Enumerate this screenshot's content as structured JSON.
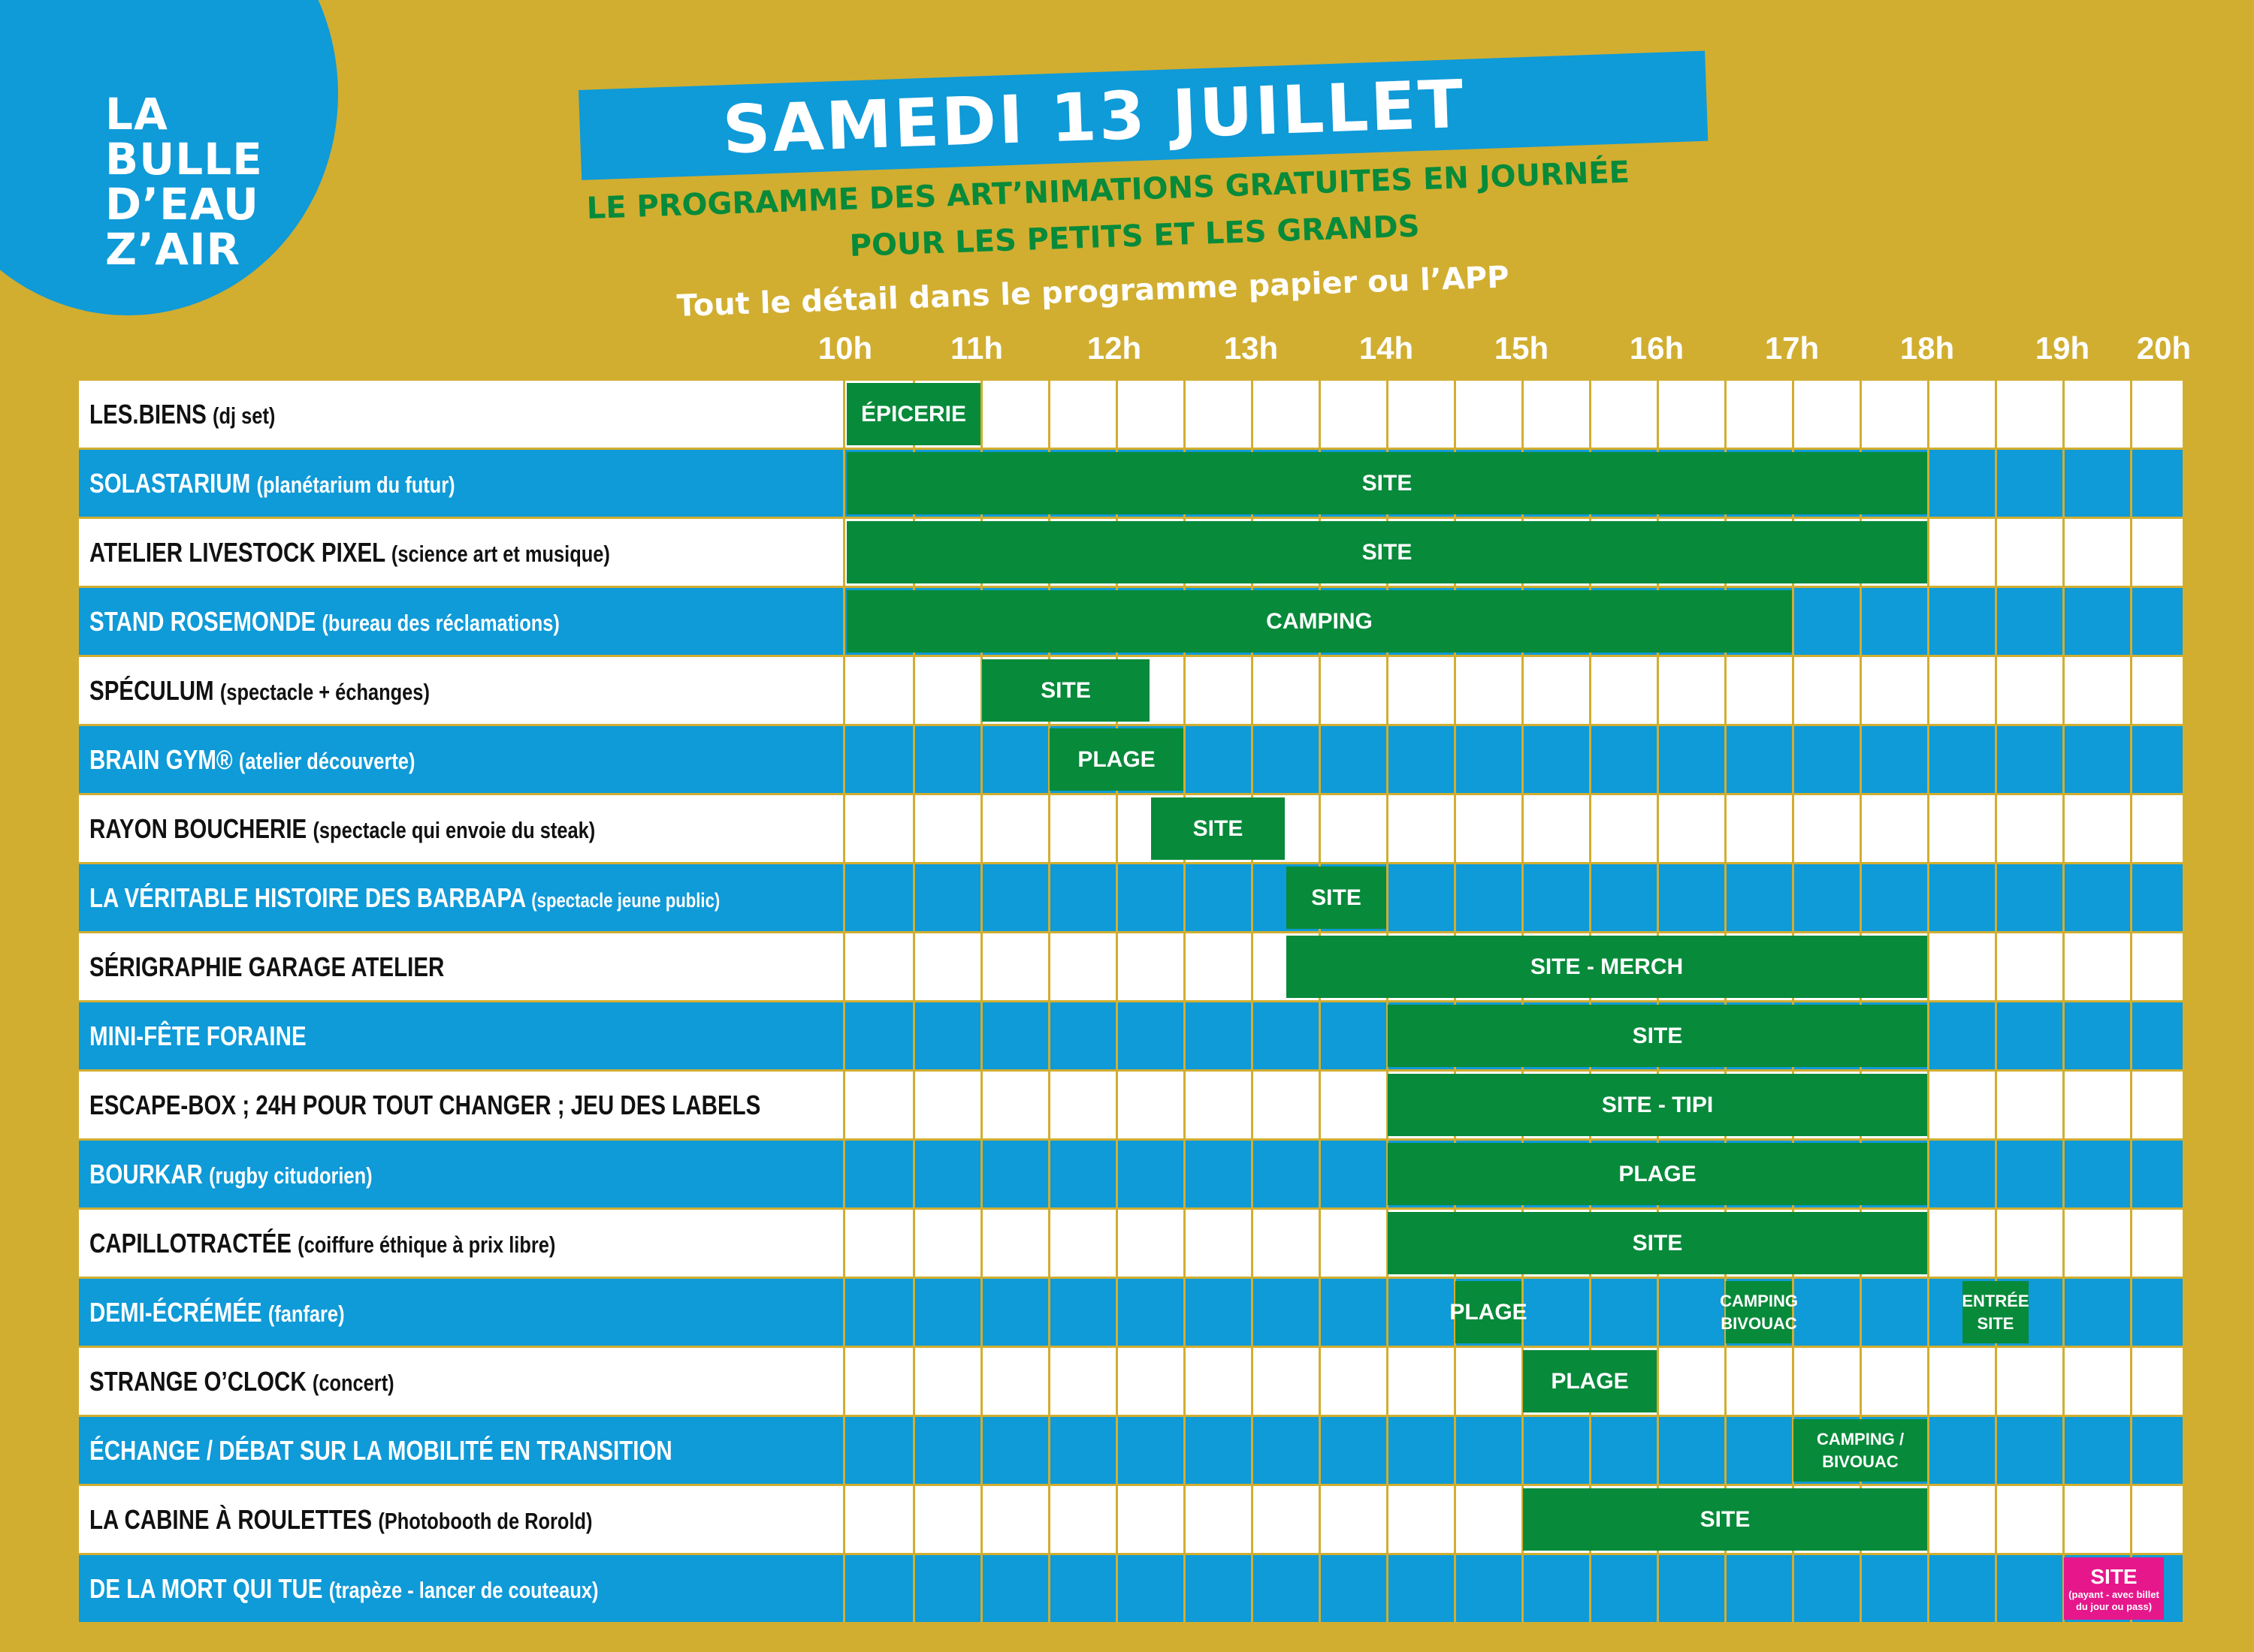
{
  "logo": {
    "lines": [
      "LA",
      "BULLE",
      "D’EAU",
      "Z’AIR"
    ]
  },
  "title": "SAMEDI 13 JUILLET",
  "subtitle_line1": "LE PROGRAMME DES ART’NIMATIONS GRATUITES EN JOURNÉE",
  "subtitle_line2": "POUR LES PETITS ET LES GRANDS",
  "subtitle_line3": "Tout le détail dans le programme papier ou l’APP",
  "hours": [
    "10h",
    "11h",
    "12h",
    "13h",
    "14h",
    "15h",
    "16h",
    "17h",
    "18h",
    "19h",
    "20h"
  ],
  "colors": {
    "background": "#d1ae30",
    "blue": "#0f9ad8",
    "green": "#078a3a",
    "magenta": "#e6168b",
    "white": "#ffffff"
  },
  "rows": [
    {
      "name": "LES.BIENS",
      "detail": "(dj set)",
      "style": "white",
      "events": [
        {
          "label": "ÉPICERIE",
          "start": "10h00",
          "end": "11h00"
        }
      ]
    },
    {
      "name": "SOLASTARIUM",
      "detail": "(planétarium du futur)",
      "style": "blue",
      "events": [
        {
          "label": "SITE",
          "start": "10h00",
          "end": "18h00"
        }
      ]
    },
    {
      "name": "ATELIER LIVESTOCK PIXEL",
      "detail": "(science art et musique)",
      "style": "white",
      "events": [
        {
          "label": "SITE",
          "start": "10h00",
          "end": "18h00"
        }
      ]
    },
    {
      "name": "STAND ROSEMONDE",
      "detail": "(bureau des réclamations)",
      "style": "blue",
      "events": [
        {
          "label": "CAMPING",
          "start": "10h00",
          "end": "17h00"
        }
      ]
    },
    {
      "name": "SPÉCULUM",
      "detail": "(spectacle + échanges)",
      "style": "white",
      "events": [
        {
          "label": "SITE",
          "start": "11h00",
          "end": "12h15"
        }
      ]
    },
    {
      "name": "BRAIN GYM®",
      "detail": "(atelier découverte)",
      "style": "blue",
      "events": [
        {
          "label": "PLAGE",
          "start": "11h30",
          "end": "12h30"
        }
      ]
    },
    {
      "name": "RAYON BOUCHERIE",
      "detail": "(spectacle qui envoie du steak)",
      "style": "white",
      "events": [
        {
          "label": "SITE",
          "start": "12h15",
          "end": "13h15"
        }
      ]
    },
    {
      "name": "LA VÉRITABLE HISTOIRE DES BARBAPA",
      "detail": "(spectacle jeune public)",
      "style": "blue",
      "detail_small": true,
      "events": [
        {
          "label": "SITE",
          "start": "13h15",
          "end": "14h00"
        }
      ]
    },
    {
      "name": "SÉRIGRAPHIE GARAGE ATELIER",
      "detail": "",
      "style": "white",
      "events": [
        {
          "label": "SITE - MERCH",
          "start": "13h15",
          "end": "18h00"
        }
      ]
    },
    {
      "name": "MINI-FÊTE FORAINE",
      "detail": "",
      "style": "blue",
      "events": [
        {
          "label": "SITE",
          "start": "14h00",
          "end": "18h00"
        }
      ]
    },
    {
      "name": "ESCAPE-BOX ; 24H POUR TOUT CHANGER ; JEU DES LABELS",
      "detail": "",
      "style": "white",
      "events": [
        {
          "label": "SITE - TIPI",
          "start": "14h00",
          "end": "18h00"
        }
      ]
    },
    {
      "name": "BOURKAR",
      "detail": "(rugby citudorien)",
      "style": "blue",
      "events": [
        {
          "label": "PLAGE",
          "start": "14h00",
          "end": "18h00"
        }
      ]
    },
    {
      "name": "CAPILLOTRACTÉE",
      "detail": "(coiffure éthique à prix libre)",
      "style": "white",
      "events": [
        {
          "label": "SITE",
          "start": "14h00",
          "end": "18h00"
        }
      ]
    },
    {
      "name": "DEMI-ÉCRÉMÉE",
      "detail": "(fanfare)",
      "style": "blue",
      "events": [
        {
          "label": "PLAGE",
          "start": "14h30",
          "end": "15h00"
        },
        {
          "label": "CAMPING BIVOUAC",
          "start": "16h30",
          "end": "17h00",
          "small": true
        },
        {
          "label": "ENTRÉE SITE",
          "start": "18h15",
          "end": "18h45",
          "small": true
        }
      ]
    },
    {
      "name": "STRANGE O’CLOCK",
      "detail": "(concert)",
      "style": "white",
      "events": [
        {
          "label": "PLAGE",
          "start": "15h00",
          "end": "16h00"
        }
      ]
    },
    {
      "name": "ÉCHANGE / DÉBAT SUR LA MOBILITÉ EN TRANSITION",
      "detail": "",
      "style": "blue",
      "events": [
        {
          "label": "CAMPING / BIVOUAC",
          "start": "17h00",
          "end": "18h00",
          "small": true
        }
      ]
    },
    {
      "name": "LA CABINE À ROULETTES",
      "detail": "(Photobooth de Rorold)",
      "style": "white",
      "events": [
        {
          "label": "SITE",
          "start": "15h00",
          "end": "18h00"
        }
      ]
    },
    {
      "name": "DE LA MORT QUI TUE",
      "detail": "(trapèze - lancer de couteaux)",
      "style": "blue",
      "events": [
        {
          "label": "SITE",
          "note": "(payant - avec billet du jour ou pass)",
          "start": "19h00",
          "end": "19h45",
          "color": "magenta"
        }
      ]
    }
  ]
}
